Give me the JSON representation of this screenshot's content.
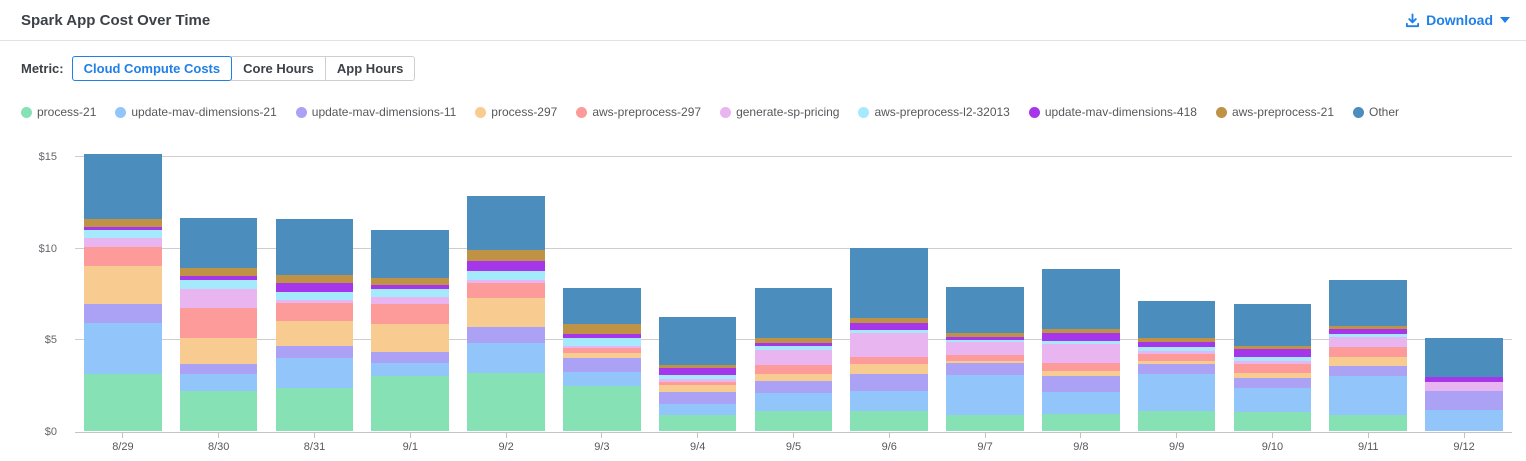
{
  "header": {
    "title": "Spark App Cost Over Time",
    "download_label": "Download"
  },
  "metric": {
    "label": "Metric:",
    "options": [
      {
        "label": "Cloud Compute Costs",
        "selected": true
      },
      {
        "label": "Core Hours",
        "selected": false
      },
      {
        "label": "App Hours",
        "selected": false
      }
    ]
  },
  "colors": {
    "accent_blue": "#2080e8"
  },
  "chart_data": {
    "type": "bar",
    "stacked": true,
    "title": "Spark App Cost Over Time",
    "xlabel": "",
    "ylabel": "",
    "ylim": [
      0,
      15
    ],
    "y_ticks": [
      {
        "label": "$0",
        "value": 0
      },
      {
        "label": "$5",
        "value": 5
      },
      {
        "label": "$10",
        "value": 10
      },
      {
        "label": "$15",
        "value": 15
      }
    ],
    "grid": true,
    "legend_position": "top",
    "categories": [
      "8/29",
      "8/30",
      "8/31",
      "9/1",
      "9/2",
      "9/3",
      "9/4",
      "9/5",
      "9/6",
      "9/7",
      "9/8",
      "9/9",
      "9/10",
      "9/11",
      "9/12"
    ],
    "series": [
      {
        "name": "process-21",
        "color": "#86e2b4",
        "values": [
          3.1,
          2.2,
          2.35,
          3.0,
          3.15,
          2.45,
          0.9,
          1.1,
          1.1,
          0.85,
          0.95,
          1.1,
          1.05,
          0.9,
          0.0
        ]
      },
      {
        "name": "update-mav-dimensions-21",
        "color": "#92c6fa",
        "values": [
          2.8,
          0.9,
          1.65,
          0.7,
          1.65,
          0.75,
          0.6,
          0.95,
          1.1,
          2.2,
          1.2,
          2.0,
          1.3,
          2.1,
          1.15
        ]
      },
      {
        "name": "update-mav-dimensions-11",
        "color": "#aba1f5",
        "values": [
          1.05,
          0.55,
          0.65,
          0.6,
          0.9,
          0.8,
          0.65,
          0.7,
          0.9,
          0.65,
          0.85,
          0.55,
          0.55,
          0.55,
          1.05
        ]
      },
      {
        "name": "process-297",
        "color": "#f8cb90",
        "values": [
          2.05,
          1.4,
          1.35,
          1.55,
          1.55,
          0.25,
          0.35,
          0.35,
          0.55,
          0.1,
          0.3,
          0.15,
          0.25,
          0.5,
          0.0
        ]
      },
      {
        "name": "aws-preprocess-297",
        "color": "#fc9b99",
        "values": [
          1.05,
          1.65,
          1.0,
          1.1,
          0.85,
          0.3,
          0.2,
          0.5,
          0.4,
          0.35,
          0.4,
          0.4,
          0.5,
          0.55,
          0.0
        ]
      },
      {
        "name": "generate-sp-pricing",
        "color": "#e9b5f0",
        "values": [
          0.5,
          1.05,
          0.15,
          0.35,
          0.15,
          0.1,
          0.15,
          0.8,
          1.3,
          0.7,
          1.05,
          0.15,
          0.15,
          0.55,
          0.45
        ]
      },
      {
        "name": "aws-preprocess-l2-32013",
        "color": "#a5e9fc",
        "values": [
          0.4,
          0.5,
          0.45,
          0.45,
          0.5,
          0.45,
          0.2,
          0.25,
          0.15,
          0.1,
          0.15,
          0.25,
          0.25,
          0.15,
          0.0
        ]
      },
      {
        "name": "update-mav-dimensions-418",
        "color": "#a636e9",
        "values": [
          0.2,
          0.2,
          0.45,
          0.2,
          0.5,
          0.2,
          0.4,
          0.15,
          0.4,
          0.2,
          0.45,
          0.25,
          0.4,
          0.25,
          0.3
        ]
      },
      {
        "name": "aws-preprocess-21",
        "color": "#bf9245",
        "values": [
          0.4,
          0.45,
          0.45,
          0.4,
          0.6,
          0.55,
          0.15,
          0.25,
          0.25,
          0.2,
          0.2,
          0.25,
          0.2,
          0.2,
          0.0
        ]
      },
      {
        "name": "Other",
        "color": "#4b8ebd",
        "values": [
          3.55,
          2.7,
          3.05,
          2.6,
          2.95,
          1.95,
          2.6,
          2.75,
          3.85,
          2.5,
          3.3,
          2.0,
          2.3,
          2.5,
          2.15
        ]
      }
    ]
  }
}
